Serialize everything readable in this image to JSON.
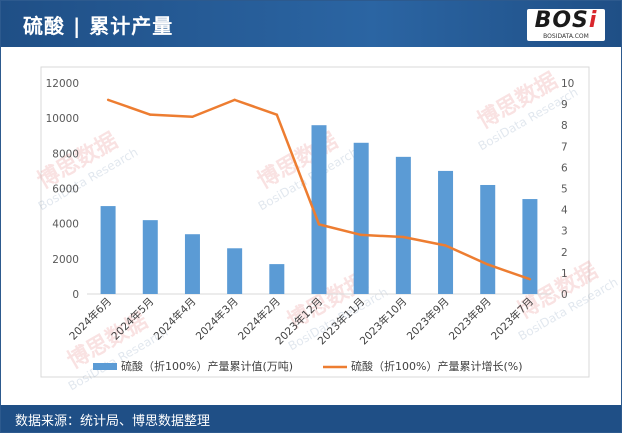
{
  "header": {
    "title": "硫酸 | 累计产量",
    "logo_text": "BOSi",
    "logo_sub": "BOSIDATA.COM"
  },
  "footer": {
    "source": "数据来源：统计局、博思数据整理"
  },
  "watermark": {
    "text_cn": "博思数据",
    "text_en": "BosiData Research"
  },
  "colors": {
    "header_bg": "#1f4f86",
    "bar": "#5b9bd5",
    "line": "#ed7d31"
  },
  "chart_data": {
    "type": "bar",
    "categories": [
      "2024年6月",
      "2024年5月",
      "2024年4月",
      "2024年3月",
      "2024年2月",
      "2023年12月",
      "2023年11月",
      "2023年10月",
      "2023年9月",
      "2023年8月",
      "2023年7月"
    ],
    "series": [
      {
        "name": "硫酸（折100%）产量累计值(万吨)",
        "type": "bar",
        "axis": "left",
        "values": [
          5000,
          4200,
          3400,
          2600,
          1700,
          9600,
          8600,
          7800,
          7000,
          6200,
          5400
        ]
      },
      {
        "name": "硫酸（折100%）产量累计增长(%)",
        "type": "line",
        "axis": "right",
        "values": [
          9.2,
          8.5,
          8.4,
          9.2,
          8.5,
          3.3,
          2.8,
          2.7,
          2.3,
          1.4,
          0.7
        ]
      }
    ],
    "left_axis": {
      "min": 0,
      "max": 12000,
      "ticks": [
        0,
        2000,
        4000,
        6000,
        8000,
        10000,
        12000
      ]
    },
    "right_axis": {
      "min": 0,
      "max": 10,
      "ticks": [
        0,
        1,
        2,
        3,
        4,
        5,
        6,
        7,
        8,
        9,
        10
      ]
    },
    "grid": false,
    "legend_position": "bottom"
  }
}
